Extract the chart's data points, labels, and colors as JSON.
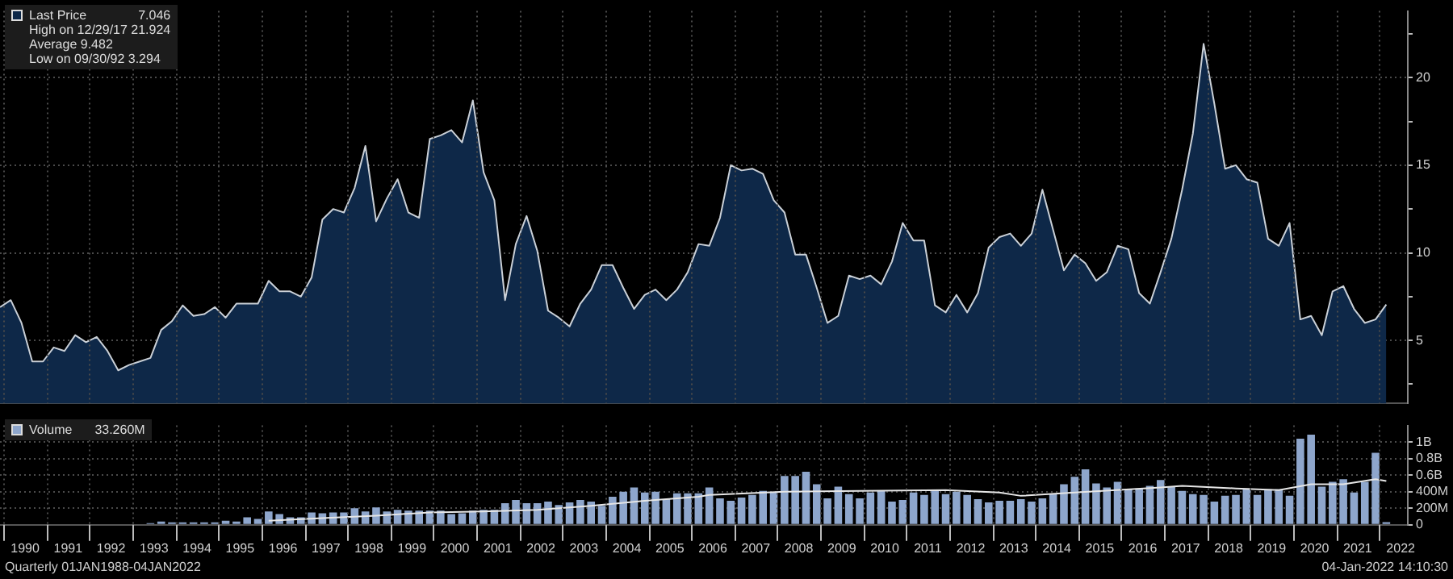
{
  "chart_data": [
    {
      "type": "area",
      "legend": "top left",
      "grid": true,
      "tick_labels": "y",
      "marker": "none",
      "annotations": [
        "7.046",
        "High on 12/29/17 21.924",
        "Average 9.482",
        "Low on 09/30/92 3.294"
      ],
      "xlim": [
        "1989-12",
        "2022-09"
      ],
      "ylim": [
        1.4,
        23.8
      ],
      "yticks": [
        {
          "value": 2.5,
          "label": null
        },
        5,
        {
          "value": 7.5,
          "label": null
        },
        10,
        {
          "value": 12.5,
          "label": null
        },
        15,
        {
          "value": 17.5,
          "label": null
        },
        20,
        {
          "value": 22.5,
          "label": null
        }
      ],
      "xticks": [
        {
          "value": "1990",
          "label": null
        },
        {
          "value": "1991",
          "label": null
        },
        {
          "value": "1992",
          "label": null
        },
        {
          "value": "1993",
          "label": null
        },
        {
          "value": "1994",
          "label": null
        },
        {
          "value": "1995",
          "label": null
        },
        {
          "value": "1996",
          "label": null
        },
        {
          "value": "1997",
          "label": null
        },
        {
          "value": "1998",
          "label": null
        },
        {
          "value": "1999",
          "label": null
        },
        {
          "value": "2000",
          "label": null
        },
        {
          "value": "2001",
          "label": null
        },
        {
          "value": "2002",
          "label": null
        },
        {
          "value": "2003",
          "label": null
        },
        {
          "value": "2004",
          "label": null
        },
        {
          "value": "2005",
          "label": null
        },
        {
          "value": "2006",
          "label": null
        },
        {
          "value": "2007",
          "label": null
        },
        {
          "value": "2008",
          "label": null
        },
        {
          "value": "2009",
          "label": null
        },
        {
          "value": "2010",
          "label": null
        },
        {
          "value": "2011",
          "label": null
        },
        {
          "value": "2012",
          "label": null
        },
        {
          "value": "2013",
          "label": null
        },
        {
          "value": "2014",
          "label": null
        },
        {
          "value": "2015",
          "label": null
        },
        {
          "value": "2016",
          "label": null
        },
        {
          "value": "2017",
          "label": null
        },
        {
          "value": "2018",
          "label": null
        },
        {
          "value": "2019",
          "label": null
        },
        {
          "value": "2020",
          "label": null
        },
        {
          "value": "2021",
          "label": null
        },
        {
          "value": "2022",
          "label": null
        }
      ],
      "x": [
        "1989-12",
        "1990-03",
        "1990-06",
        "1990-09",
        "1990-12",
        "1991-03",
        "1991-06",
        "1991-09",
        "1991-12",
        "1992-03",
        "1992-06",
        "1992-09",
        "1992-12",
        "1993-03",
        "1993-06",
        "1993-09",
        "1993-12",
        "1994-03",
        "1994-06",
        "1994-09",
        "1994-12",
        "1995-03",
        "1995-06",
        "1995-09",
        "1995-12",
        "1996-03",
        "1996-06",
        "1996-09",
        "1996-12",
        "1997-03",
        "1997-06",
        "1997-09",
        "1997-12",
        "1998-03",
        "1998-06",
        "1998-09",
        "1998-12",
        "1999-03",
        "1999-06",
        "1999-09",
        "1999-12",
        "2000-03",
        "2000-06",
        "2000-09",
        "2000-12",
        "2001-03",
        "2001-06",
        "2001-09",
        "2001-12",
        "2002-03",
        "2002-06",
        "2002-09",
        "2002-12",
        "2003-03",
        "2003-06",
        "2003-09",
        "2003-12",
        "2004-03",
        "2004-06",
        "2004-09",
        "2004-12",
        "2005-03",
        "2005-06",
        "2005-09",
        "2005-12",
        "2006-03",
        "2006-06",
        "2006-09",
        "2006-12",
        "2007-03",
        "2007-06",
        "2007-09",
        "2007-12",
        "2008-03",
        "2008-06",
        "2008-09",
        "2008-12",
        "2009-03",
        "2009-06",
        "2009-09",
        "2009-12",
        "2010-03",
        "2010-06",
        "2010-09",
        "2010-12",
        "2011-03",
        "2011-06",
        "2011-09",
        "2011-12",
        "2012-03",
        "2012-06",
        "2012-09",
        "2012-12",
        "2013-03",
        "2013-06",
        "2013-09",
        "2013-12",
        "2014-03",
        "2014-06",
        "2014-09",
        "2014-12",
        "2015-03",
        "2015-06",
        "2015-09",
        "2015-12",
        "2016-03",
        "2016-06",
        "2016-09",
        "2016-12",
        "2017-03",
        "2017-06",
        "2017-09",
        "2017-12",
        "2018-03",
        "2018-06",
        "2018-09",
        "2018-12",
        "2019-03",
        "2019-06",
        "2019-09",
        "2019-12",
        "2020-03",
        "2020-06",
        "2020-09",
        "2020-12",
        "2021-03",
        "2021-06",
        "2021-09",
        "2021-12",
        "2022-03"
      ],
      "series": [
        {
          "name": "Last Price",
          "color": "#0e2848",
          "values": [
            6.9,
            7.3,
            6.0,
            3.8,
            3.8,
            4.6,
            4.4,
            5.3,
            4.9,
            5.2,
            4.4,
            3.294,
            3.6,
            3.8,
            4.0,
            5.6,
            6.1,
            7.0,
            6.4,
            6.5,
            6.9,
            6.3,
            7.1,
            7.1,
            7.1,
            8.4,
            7.8,
            7.8,
            7.5,
            8.6,
            11.9,
            12.5,
            12.3,
            13.7,
            16.1,
            11.8,
            13.1,
            14.2,
            12.3,
            12.0,
            16.5,
            16.7,
            17.0,
            16.3,
            18.7,
            14.6,
            13.0,
            7.3,
            10.5,
            12.1,
            10.1,
            6.7,
            6.3,
            5.8,
            7.1,
            7.9,
            9.3,
            9.3,
            8.0,
            6.8,
            7.6,
            7.9,
            7.3,
            7.9,
            8.9,
            10.5,
            10.4,
            12.0,
            15.0,
            14.7,
            14.8,
            14.5,
            13.0,
            12.3,
            9.9,
            9.9,
            8.0,
            6.0,
            6.4,
            8.7,
            8.5,
            8.7,
            8.2,
            9.5,
            11.7,
            10.7,
            10.7,
            7.0,
            6.6,
            7.6,
            6.6,
            7.7,
            10.3,
            10.9,
            11.1,
            10.4,
            11.1,
            13.6,
            11.3,
            9.0,
            9.9,
            9.4,
            8.4,
            8.9,
            10.4,
            10.2,
            7.7,
            7.1,
            8.9,
            10.8,
            13.6,
            16.8,
            21.924,
            18.5,
            14.8,
            15.0,
            14.2,
            14.0,
            10.8,
            10.4,
            11.7,
            6.2,
            6.4,
            5.3,
            7.8,
            8.1,
            6.8,
            6.0,
            6.2,
            7.046
          ]
        }
      ]
    },
    {
      "type": "bar",
      "legend": "top left",
      "grid": true,
      "annotations": [
        "33.260M",
        "Quarterly 01JAN1988-04JAN2022",
        "04-Jan-2022 14:10:30"
      ],
      "xlim": [
        "1989-12",
        "2022-09"
      ],
      "ylim": [
        0,
        1200000000.0
      ],
      "yticks": [
        0,
        {
          "value": 200000000.0,
          "label": "200M"
        },
        {
          "value": 400000000.0,
          "label": "400M"
        },
        {
          "value": 600000000.0,
          "label": "0.6B"
        },
        {
          "value": 800000000.0,
          "label": "0.8B"
        },
        {
          "value": 1000000000.0,
          "label": "1B"
        }
      ],
      "xticks": [
        {
          "value": "1990",
          "label": null
        },
        {
          "value": "1990-07",
          "label": "1990"
        },
        {
          "value": "1991",
          "label": null
        },
        {
          "value": "1991-07",
          "label": "1991"
        },
        {
          "value": "1992",
          "label": null
        },
        {
          "value": "1992-07",
          "label": "1992"
        },
        {
          "value": "1993",
          "label": null
        },
        {
          "value": "1993-07",
          "label": "1993"
        },
        {
          "value": "1994",
          "label": null
        },
        {
          "value": "1994-07",
          "label": "1994"
        },
        {
          "value": "1995",
          "label": null
        },
        {
          "value": "1995-07",
          "label": "1995"
        },
        {
          "value": "1996",
          "label": null
        },
        {
          "value": "1996-07",
          "label": "1996"
        },
        {
          "value": "1997",
          "label": null
        },
        {
          "value": "1997-07",
          "label": "1997"
        },
        {
          "value": "1998",
          "label": null
        },
        {
          "value": "1998-07",
          "label": "1998"
        },
        {
          "value": "1999",
          "label": null
        },
        {
          "value": "1999-07",
          "label": "1999"
        },
        {
          "value": "2000",
          "label": null
        },
        {
          "value": "2000-07",
          "label": "2000"
        },
        {
          "value": "2001",
          "label": null
        },
        {
          "value": "2001-07",
          "label": "2001"
        },
        {
          "value": "2002",
          "label": null
        },
        {
          "value": "2002-07",
          "label": "2002"
        },
        {
          "value": "2003",
          "label": null
        },
        {
          "value": "2003-07",
          "label": "2003"
        },
        {
          "value": "2004",
          "label": null
        },
        {
          "value": "2004-07",
          "label": "2004"
        },
        {
          "value": "2005",
          "label": null
        },
        {
          "value": "2005-07",
          "label": "2005"
        },
        {
          "value": "2006",
          "label": null
        },
        {
          "value": "2006-07",
          "label": "2006"
        },
        {
          "value": "2007",
          "label": null
        },
        {
          "value": "2007-07",
          "label": "2007"
        },
        {
          "value": "2008",
          "label": null
        },
        {
          "value": "2008-07",
          "label": "2008"
        },
        {
          "value": "2009",
          "label": null
        },
        {
          "value": "2009-07",
          "label": "2009"
        },
        {
          "value": "2010",
          "label": null
        },
        {
          "value": "2010-07",
          "label": "2010"
        },
        {
          "value": "2011",
          "label": null
        },
        {
          "value": "2011-07",
          "label": "2011"
        },
        {
          "value": "2012",
          "label": null
        },
        {
          "value": "2012-07",
          "label": "2012"
        },
        {
          "value": "2013",
          "label": null
        },
        {
          "value": "2013-07",
          "label": "2013"
        },
        {
          "value": "2014",
          "label": null
        },
        {
          "value": "2014-07",
          "label": "2014"
        },
        {
          "value": "2015",
          "label": null
        },
        {
          "value": "2015-07",
          "label": "2015"
        },
        {
          "value": "2016",
          "label": null
        },
        {
          "value": "2016-07",
          "label": "2016"
        },
        {
          "value": "2017",
          "label": null
        },
        {
          "value": "2017-07",
          "label": "2017"
        },
        {
          "value": "2018",
          "label": null
        },
        {
          "value": "2018-07",
          "label": "2018"
        },
        {
          "value": "2019",
          "label": null
        },
        {
          "value": "2019-07",
          "label": "2019"
        },
        {
          "value": "2020",
          "label": null
        },
        {
          "value": "2020-07",
          "label": "2020"
        },
        {
          "value": "2021",
          "label": null
        },
        {
          "value": "2021-07",
          "label": "2021"
        },
        {
          "value": "2022",
          "label": null
        },
        {
          "value": "2022-07",
          "label": "2022"
        }
      ],
      "x": [
        "1992-09",
        "1992-12",
        "1993-03",
        "1993-06",
        "1993-09",
        "1993-12",
        "1994-03",
        "1994-06",
        "1994-09",
        "1994-12",
        "1995-03",
        "1995-06",
        "1995-09",
        "1995-12",
        "1996-03",
        "1996-06",
        "1996-09",
        "1996-12",
        "1997-03",
        "1997-06",
        "1997-09",
        "1997-12",
        "1998-03",
        "1998-06",
        "1998-09",
        "1998-12",
        "1999-03",
        "1999-06",
        "1999-09",
        "1999-12",
        "2000-03",
        "2000-06",
        "2000-09",
        "2000-12",
        "2001-03",
        "2001-06",
        "2001-09",
        "2001-12",
        "2002-03",
        "2002-06",
        "2002-09",
        "2002-12",
        "2003-03",
        "2003-06",
        "2003-09",
        "2003-12",
        "2004-03",
        "2004-06",
        "2004-09",
        "2004-12",
        "2005-03",
        "2005-06",
        "2005-09",
        "2005-12",
        "2006-03",
        "2006-06",
        "2006-09",
        "2006-12",
        "2007-03",
        "2007-06",
        "2007-09",
        "2007-12",
        "2008-03",
        "2008-06",
        "2008-09",
        "2008-12",
        "2009-03",
        "2009-06",
        "2009-09",
        "2009-12",
        "2010-03",
        "2010-06",
        "2010-09",
        "2010-12",
        "2011-03",
        "2011-06",
        "2011-09",
        "2011-12",
        "2012-03",
        "2012-06",
        "2012-09",
        "2012-12",
        "2013-03",
        "2013-06",
        "2013-09",
        "2013-12",
        "2014-03",
        "2014-06",
        "2014-09",
        "2014-12",
        "2015-03",
        "2015-06",
        "2015-09",
        "2015-12",
        "2016-03",
        "2016-06",
        "2016-09",
        "2016-12",
        "2017-03",
        "2017-06",
        "2017-09",
        "2017-12",
        "2018-03",
        "2018-06",
        "2018-09",
        "2018-12",
        "2019-03",
        "2019-06",
        "2019-09",
        "2019-12",
        "2020-03",
        "2020-06",
        "2020-09",
        "2020-12",
        "2021-03",
        "2021-06",
        "2021-09",
        "2021-12",
        "2022-03"
      ],
      "series": [
        {
          "name": "Volume",
          "color": "#8ea6cc",
          "values": [
            10000000.0,
            10000000.0,
            10000000.0,
            20000000.0,
            40000000.0,
            30000000.0,
            30000000.0,
            30000000.0,
            30000000.0,
            30000000.0,
            50000000.0,
            40000000.0,
            90000000.0,
            70000000.0,
            160000000.0,
            130000000.0,
            90000000.0,
            90000000.0,
            150000000.0,
            140000000.0,
            150000000.0,
            150000000.0,
            200000000.0,
            160000000.0,
            210000000.0,
            160000000.0,
            180000000.0,
            170000000.0,
            170000000.0,
            170000000.0,
            170000000.0,
            130000000.0,
            140000000.0,
            170000000.0,
            180000000.0,
            180000000.0,
            260000000.0,
            300000000.0,
            260000000.0,
            260000000.0,
            280000000.0,
            240000000.0,
            270000000.0,
            300000000.0,
            280000000.0,
            230000000.0,
            340000000.0,
            400000000.0,
            450000000.0,
            390000000.0,
            400000000.0,
            310000000.0,
            380000000.0,
            380000000.0,
            380000000.0,
            450000000.0,
            320000000.0,
            290000000.0,
            330000000.0,
            360000000.0,
            410000000.0,
            390000000.0,
            590000000.0,
            590000000.0,
            640000000.0,
            490000000.0,
            320000000.0,
            460000000.0,
            370000000.0,
            320000000.0,
            390000000.0,
            410000000.0,
            280000000.0,
            300000000.0,
            390000000.0,
            360000000.0,
            410000000.0,
            370000000.0,
            400000000.0,
            360000000.0,
            310000000.0,
            270000000.0,
            290000000.0,
            290000000.0,
            310000000.0,
            280000000.0,
            320000000.0,
            370000000.0,
            490000000.0,
            580000000.0,
            670000000.0,
            500000000.0,
            450000000.0,
            520000000.0,
            430000000.0,
            440000000.0,
            470000000.0,
            540000000.0,
            460000000.0,
            410000000.0,
            370000000.0,
            360000000.0,
            280000000.0,
            350000000.0,
            360000000.0,
            440000000.0,
            360000000.0,
            430000000.0,
            430000000.0,
            350000000.0,
            1040000000.0,
            1090000000.0,
            460000000.0,
            520000000.0,
            550000000.0,
            390000000.0,
            520000000.0,
            870000000.0,
            33260000.0
          ]
        },
        {
          "type": "line",
          "color": "#e6e6e6",
          "x": [
            "1996-03",
            "1997-06",
            "1998-09",
            "1999-12",
            "2001-03",
            "2002-06",
            "2003-09",
            "2004-12",
            "2006-03",
            "2006-06",
            "2008-03",
            "2009-12",
            "2011-12",
            "2013-03",
            "2013-09",
            "2014-12",
            "2016-12",
            "2017-06",
            "2018-09",
            "2019-09",
            "2020-06",
            "2021-03",
            "2021-12",
            "2022-03"
          ],
          "values": [
            50000000.0,
            80000000.0,
            110000000.0,
            150000000.0,
            160000000.0,
            180000000.0,
            230000000.0,
            290000000.0,
            340000000.0,
            360000000.0,
            400000000.0,
            410000000.0,
            420000000.0,
            390000000.0,
            350000000.0,
            390000000.0,
            450000000.0,
            470000000.0,
            440000000.0,
            420000000.0,
            490000000.0,
            490000000.0,
            550000000.0,
            530000000.0
          ]
        }
      ]
    }
  ]
}
